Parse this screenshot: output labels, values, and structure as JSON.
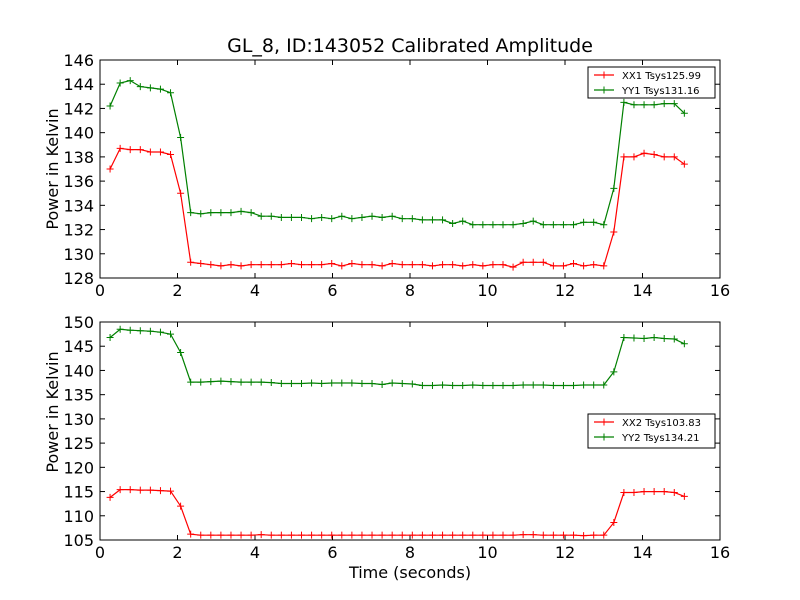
{
  "chart_data": [
    {
      "type": "line",
      "title": "GL_8, ID:143052 Calibrated Amplitude",
      "xlabel": "",
      "ylabel": "Power in Kelvin",
      "xlim": [
        0,
        16
      ],
      "ylim": [
        128,
        146
      ],
      "xticks": [
        0,
        2,
        4,
        6,
        8,
        10,
        12,
        14,
        16
      ],
      "yticks": [
        128,
        130,
        132,
        134,
        136,
        138,
        140,
        142,
        144,
        146
      ],
      "legend_position": "top-right",
      "x": [
        0.26,
        0.52,
        0.78,
        1.04,
        1.3,
        1.56,
        1.82,
        2.08,
        2.34,
        2.6,
        2.86,
        3.12,
        3.38,
        3.64,
        3.9,
        4.16,
        4.42,
        4.68,
        4.94,
        5.2,
        5.46,
        5.72,
        5.98,
        6.24,
        6.5,
        6.76,
        7.02,
        7.28,
        7.54,
        7.8,
        8.06,
        8.32,
        8.58,
        8.84,
        9.1,
        9.36,
        9.62,
        9.88,
        10.14,
        10.4,
        10.66,
        10.92,
        11.18,
        11.44,
        11.7,
        11.96,
        12.22,
        12.48,
        12.74,
        13.0,
        13.26,
        13.52,
        13.78,
        14.04,
        14.3,
        14.56,
        14.82,
        15.08
      ],
      "series": [
        {
          "name": "XX1 Tsys125.99",
          "color": "#ff0000",
          "values": [
            137.0,
            138.7,
            138.6,
            138.6,
            138.4,
            138.4,
            138.2,
            135.0,
            129.3,
            129.2,
            129.1,
            129.0,
            129.1,
            129.0,
            129.1,
            129.1,
            129.1,
            129.1,
            129.2,
            129.1,
            129.1,
            129.1,
            129.2,
            129.0,
            129.2,
            129.1,
            129.1,
            129.0,
            129.2,
            129.1,
            129.1,
            129.1,
            129.0,
            129.1,
            129.1,
            129.0,
            129.1,
            129.0,
            129.1,
            129.1,
            128.9,
            129.3,
            129.3,
            129.3,
            129.0,
            129.0,
            129.2,
            129.0,
            129.1,
            129.0,
            131.8,
            138.0,
            138.0,
            138.3,
            138.2,
            138.0,
            138.0,
            137.4
          ]
        },
        {
          "name": "YY1 Tsys131.16",
          "color": "#008000",
          "values": [
            142.2,
            144.1,
            144.3,
            143.8,
            143.7,
            143.6,
            143.3,
            139.6,
            133.4,
            133.3,
            133.4,
            133.4,
            133.4,
            133.5,
            133.4,
            133.1,
            133.1,
            133.0,
            133.0,
            133.0,
            132.9,
            133.0,
            132.9,
            133.1,
            132.9,
            133.0,
            133.1,
            133.0,
            133.1,
            132.9,
            132.9,
            132.8,
            132.8,
            132.8,
            132.5,
            132.7,
            132.4,
            132.4,
            132.4,
            132.4,
            132.4,
            132.5,
            132.7,
            132.4,
            132.4,
            132.4,
            132.4,
            132.6,
            132.6,
            132.4,
            135.4,
            142.5,
            142.3,
            142.3,
            142.3,
            142.4,
            142.4,
            141.6
          ]
        }
      ]
    },
    {
      "type": "line",
      "title": "",
      "xlabel": "Time (seconds)",
      "ylabel": "Power in Kelvin",
      "xlim": [
        0,
        16
      ],
      "ylim": [
        105,
        150
      ],
      "xticks": [
        0,
        2,
        4,
        6,
        8,
        10,
        12,
        14,
        16
      ],
      "yticks": [
        105,
        110,
        115,
        120,
        125,
        130,
        135,
        140,
        145,
        150
      ],
      "legend_position": "center-right",
      "x": [
        0.26,
        0.52,
        0.78,
        1.04,
        1.3,
        1.56,
        1.82,
        2.08,
        2.34,
        2.6,
        2.86,
        3.12,
        3.38,
        3.64,
        3.9,
        4.16,
        4.42,
        4.68,
        4.94,
        5.2,
        5.46,
        5.72,
        5.98,
        6.24,
        6.5,
        6.76,
        7.02,
        7.28,
        7.54,
        7.8,
        8.06,
        8.32,
        8.58,
        8.84,
        9.1,
        9.36,
        9.62,
        9.88,
        10.14,
        10.4,
        10.66,
        10.92,
        11.18,
        11.44,
        11.7,
        11.96,
        12.22,
        12.48,
        12.74,
        13.0,
        13.26,
        13.52,
        13.78,
        14.04,
        14.3,
        14.56,
        14.82,
        15.08
      ],
      "series": [
        {
          "name": "XX2 Tsys103.83",
          "color": "#ff0000",
          "values": [
            113.8,
            115.4,
            115.4,
            115.3,
            115.3,
            115.2,
            115.1,
            112.0,
            106.2,
            106.0,
            106.0,
            106.0,
            106.0,
            106.0,
            106.0,
            106.1,
            106.0,
            106.0,
            106.0,
            106.0,
            106.0,
            106.0,
            106.0,
            106.0,
            106.0,
            106.0,
            106.0,
            106.0,
            106.0,
            106.0,
            106.0,
            106.0,
            106.0,
            106.0,
            106.0,
            106.0,
            106.0,
            106.0,
            106.0,
            106.0,
            106.0,
            106.1,
            106.1,
            106.0,
            106.0,
            106.0,
            106.0,
            105.9,
            106.0,
            106.0,
            108.6,
            114.8,
            114.8,
            115.0,
            115.0,
            115.0,
            114.8,
            114.0
          ]
        },
        {
          "name": "YY2 Tsys134.21",
          "color": "#008000",
          "values": [
            146.8,
            148.5,
            148.3,
            148.2,
            148.1,
            147.9,
            147.5,
            143.7,
            137.6,
            137.6,
            137.7,
            137.8,
            137.7,
            137.6,
            137.6,
            137.6,
            137.5,
            137.3,
            137.3,
            137.3,
            137.4,
            137.3,
            137.4,
            137.4,
            137.4,
            137.3,
            137.3,
            137.1,
            137.4,
            137.3,
            137.2,
            136.9,
            136.9,
            137.0,
            136.9,
            136.9,
            137.0,
            136.9,
            136.9,
            136.9,
            136.9,
            137.0,
            137.0,
            137.0,
            136.9,
            136.9,
            136.9,
            137.0,
            137.0,
            137.0,
            139.7,
            146.8,
            146.7,
            146.6,
            146.8,
            146.6,
            146.5,
            145.5
          ]
        }
      ]
    }
  ]
}
